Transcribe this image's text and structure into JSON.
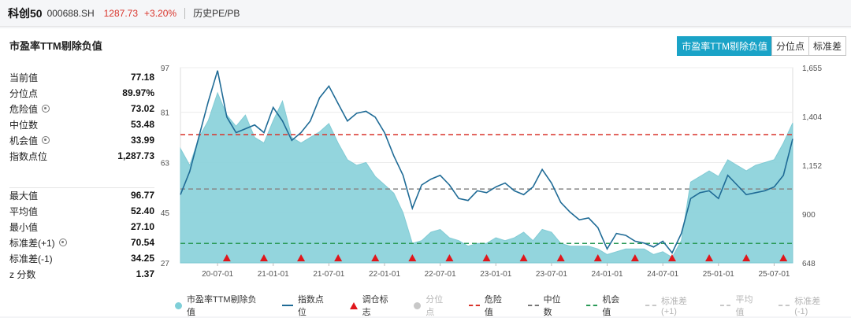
{
  "header": {
    "name": "科创50",
    "code": "000688.SH",
    "price": "1287.73",
    "change": "+3.20%",
    "tab": "历史PE/PB"
  },
  "panel": {
    "title": "市盈率TTM剔除负值",
    "segments": [
      {
        "label": "市盈率TTM剔除负值",
        "active": true
      },
      {
        "label": "分位点",
        "active": false
      },
      {
        "label": "标准差",
        "active": false
      }
    ]
  },
  "stats_top": [
    {
      "label": "当前值",
      "value": "77.18",
      "gear": false
    },
    {
      "label": "分位点",
      "value": "89.97%",
      "gear": false
    },
    {
      "label": "危险值",
      "value": "73.02",
      "gear": true
    },
    {
      "label": "中位数",
      "value": "53.48",
      "gear": false
    },
    {
      "label": "机会值",
      "value": "33.99",
      "gear": true
    },
    {
      "label": "指数点位",
      "value": "1,287.73",
      "gear": false
    }
  ],
  "stats_bottom": [
    {
      "label": "最大值",
      "value": "96.77",
      "gear": false
    },
    {
      "label": "平均值",
      "value": "52.40",
      "gear": false
    },
    {
      "label": "最小值",
      "value": "27.10",
      "gear": false
    },
    {
      "label": "标准差(+1)",
      "value": "70.54",
      "gear": true
    },
    {
      "label": "标准差(-1)",
      "value": "34.25",
      "gear": false
    },
    {
      "label": "z 分数",
      "value": "1.37",
      "gear": false
    }
  ],
  "legend": [
    {
      "label": "市盈率TTM剔除负值",
      "marker": "dot",
      "color": "#7fcfd8",
      "off": false
    },
    {
      "label": "指数点位",
      "marker": "line",
      "color": "#1f6b96",
      "off": false
    },
    {
      "label": "调仓标志",
      "marker": "triangle",
      "color": "#e0161b",
      "off": false
    },
    {
      "label": "分位点",
      "marker": "dot",
      "color": "#c8c8c8",
      "off": true
    },
    {
      "label": "危险值",
      "marker": "dash",
      "color": "#d9342b",
      "off": false
    },
    {
      "label": "中位数",
      "marker": "dash",
      "color": "#777777",
      "off": false
    },
    {
      "label": "机会值",
      "marker": "dash",
      "color": "#2a9a57",
      "off": false
    },
    {
      "label": "标准差(+1)",
      "marker": "dash",
      "color": "#c8c8c8",
      "off": true
    },
    {
      "label": "平均值",
      "marker": "dash",
      "color": "#c8c8c8",
      "off": true
    },
    {
      "label": "标准差(-1)",
      "marker": "dash",
      "color": "#c8c8c8",
      "off": true
    }
  ],
  "chart_data": {
    "type": "area",
    "x_ticks": [
      "20-07-01",
      "21-01-01",
      "21-07-01",
      "22-01-01",
      "22-07-01",
      "23-01-01",
      "23-07-01",
      "24-01-01",
      "24-07-01",
      "25-01-01",
      "25-07-01"
    ],
    "x_range": [
      "2020-03",
      "2025-09"
    ],
    "y_left": {
      "ticks": [
        "97",
        "81",
        "63",
        "45",
        "27"
      ],
      "min": 27,
      "max": 97
    },
    "y_right": {
      "ticks": [
        "1,655",
        "1,404",
        "1,152",
        "900",
        "648"
      ],
      "min": 648,
      "max": 1655
    },
    "reference_lines": {
      "danger": 73.02,
      "median": 53.48,
      "opportunity": 33.99
    },
    "colors": {
      "area": "#8ed3dc",
      "index": "#1f6b96",
      "danger": "#d9342b",
      "median": "#888888",
      "opportunity": "#2a9a57",
      "signal": "#e0161b"
    },
    "pe_series": [
      [
        "2020-03",
        68
      ],
      [
        "2020-04",
        62
      ],
      [
        "2020-05",
        72
      ],
      [
        "2020-06",
        78
      ],
      [
        "2020-07",
        88
      ],
      [
        "2020-08",
        80
      ],
      [
        "2020-09",
        76
      ],
      [
        "2020-10",
        80
      ],
      [
        "2020-11",
        72
      ],
      [
        "2020-12",
        70
      ],
      [
        "2021-01",
        78
      ],
      [
        "2021-02",
        85
      ],
      [
        "2021-03",
        72
      ],
      [
        "2021-04",
        70
      ],
      [
        "2021-05",
        72
      ],
      [
        "2021-06",
        74
      ],
      [
        "2021-07",
        77
      ],
      [
        "2021-08",
        70
      ],
      [
        "2021-09",
        64
      ],
      [
        "2021-10",
        62
      ],
      [
        "2021-11",
        63
      ],
      [
        "2021-12",
        58
      ],
      [
        "2022-01",
        55
      ],
      [
        "2022-02",
        52
      ],
      [
        "2022-03",
        45
      ],
      [
        "2022-04",
        34
      ],
      [
        "2022-05",
        35
      ],
      [
        "2022-06",
        38
      ],
      [
        "2022-07",
        39
      ],
      [
        "2022-08",
        36
      ],
      [
        "2022-09",
        35
      ],
      [
        "2022-10",
        33
      ],
      [
        "2022-11",
        34
      ],
      [
        "2022-12",
        34
      ],
      [
        "2023-01",
        36
      ],
      [
        "2023-02",
        35
      ],
      [
        "2023-03",
        36
      ],
      [
        "2023-04",
        38
      ],
      [
        "2023-05",
        35
      ],
      [
        "2023-06",
        39
      ],
      [
        "2023-07",
        38
      ],
      [
        "2023-08",
        34
      ],
      [
        "2023-09",
        33
      ],
      [
        "2023-10",
        33
      ],
      [
        "2023-11",
        33
      ],
      [
        "2023-12",
        32
      ],
      [
        "2024-01",
        30
      ],
      [
        "2024-02",
        31
      ],
      [
        "2024-03",
        32
      ],
      [
        "2024-04",
        32
      ],
      [
        "2024-05",
        32
      ],
      [
        "2024-06",
        30
      ],
      [
        "2024-07",
        31
      ],
      [
        "2024-08",
        29
      ],
      [
        "2024-09",
        35
      ],
      [
        "2024-10",
        56
      ],
      [
        "2024-11",
        58
      ],
      [
        "2024-12",
        60
      ],
      [
        "2025-01",
        58
      ],
      [
        "2025-02",
        64
      ],
      [
        "2025-03",
        62
      ],
      [
        "2025-04",
        60
      ],
      [
        "2025-05",
        62
      ],
      [
        "2025-06",
        63
      ],
      [
        "2025-07",
        64
      ],
      [
        "2025-08",
        70
      ],
      [
        "2025-09",
        77.18
      ]
    ],
    "index_series": [
      [
        "2020-03",
        1000
      ],
      [
        "2020-04",
        1120
      ],
      [
        "2020-05",
        1300
      ],
      [
        "2020-06",
        1480
      ],
      [
        "2020-07",
        1640
      ],
      [
        "2020-08",
        1400
      ],
      [
        "2020-09",
        1320
      ],
      [
        "2020-10",
        1340
      ],
      [
        "2020-11",
        1360
      ],
      [
        "2020-12",
        1320
      ],
      [
        "2021-01",
        1450
      ],
      [
        "2021-02",
        1380
      ],
      [
        "2021-03",
        1280
      ],
      [
        "2021-04",
        1320
      ],
      [
        "2021-05",
        1380
      ],
      [
        "2021-06",
        1500
      ],
      [
        "2021-07",
        1560
      ],
      [
        "2021-08",
        1470
      ],
      [
        "2021-09",
        1380
      ],
      [
        "2021-10",
        1420
      ],
      [
        "2021-11",
        1430
      ],
      [
        "2021-12",
        1400
      ],
      [
        "2022-01",
        1320
      ],
      [
        "2022-02",
        1200
      ],
      [
        "2022-03",
        1100
      ],
      [
        "2022-04",
        930
      ],
      [
        "2022-05",
        1050
      ],
      [
        "2022-06",
        1080
      ],
      [
        "2022-07",
        1100
      ],
      [
        "2022-08",
        1050
      ],
      [
        "2022-09",
        980
      ],
      [
        "2022-10",
        970
      ],
      [
        "2022-11",
        1020
      ],
      [
        "2022-12",
        1010
      ],
      [
        "2023-01",
        1040
      ],
      [
        "2023-02",
        1060
      ],
      [
        "2023-03",
        1020
      ],
      [
        "2023-04",
        1000
      ],
      [
        "2023-05",
        1040
      ],
      [
        "2023-06",
        1130
      ],
      [
        "2023-07",
        1060
      ],
      [
        "2023-08",
        960
      ],
      [
        "2023-09",
        910
      ],
      [
        "2023-10",
        870
      ],
      [
        "2023-11",
        880
      ],
      [
        "2023-12",
        830
      ],
      [
        "2024-01",
        720
      ],
      [
        "2024-02",
        800
      ],
      [
        "2024-03",
        790
      ],
      [
        "2024-04",
        760
      ],
      [
        "2024-05",
        750
      ],
      [
        "2024-06",
        730
      ],
      [
        "2024-07",
        760
      ],
      [
        "2024-08",
        700
      ],
      [
        "2024-09",
        800
      ],
      [
        "2024-10",
        980
      ],
      [
        "2024-11",
        1010
      ],
      [
        "2024-12",
        1020
      ],
      [
        "2025-01",
        980
      ],
      [
        "2025-02",
        1100
      ],
      [
        "2025-03",
        1050
      ],
      [
        "2025-04",
        1000
      ],
      [
        "2025-05",
        1010
      ],
      [
        "2025-06",
        1020
      ],
      [
        "2025-07",
        1040
      ],
      [
        "2025-08",
        1100
      ],
      [
        "2025-09",
        1287.73
      ]
    ],
    "signals": [
      "2020-08",
      "2020-12",
      "2021-04",
      "2021-08",
      "2021-12",
      "2022-04",
      "2022-08",
      "2022-12",
      "2023-04",
      "2023-08",
      "2023-12",
      "2024-04",
      "2024-08",
      "2024-12",
      "2025-04",
      "2025-08"
    ]
  }
}
